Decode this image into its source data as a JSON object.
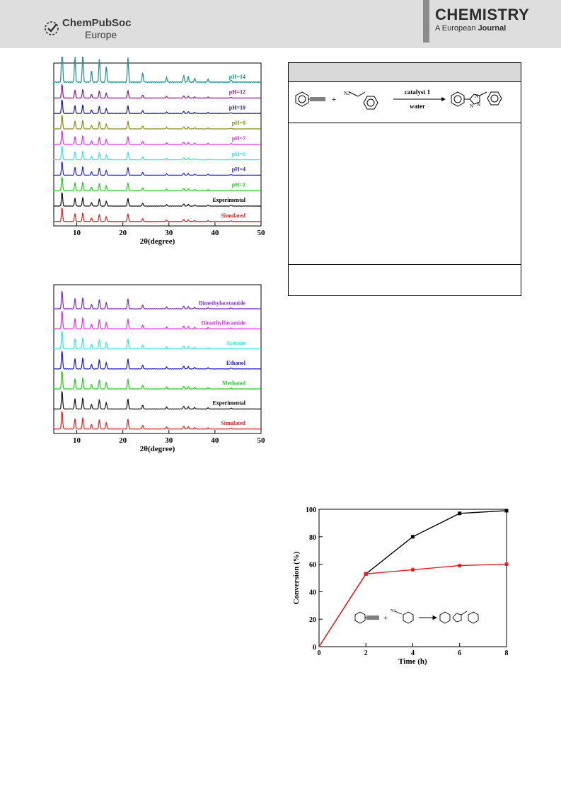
{
  "header": {
    "publisher_name": "ChemPubSoc",
    "publisher_sub": "Europe",
    "journal_title": "CHEMISTRY",
    "journal_sub_prefix": "A European",
    "journal_sub_bold": "Journal"
  },
  "scheme": {
    "reagent": "catalyst 1",
    "solvent": "water",
    "plus": "+",
    "azide_label": "N3"
  },
  "chart_data": [
    {
      "type": "line",
      "xlabel": "2θ(degree)",
      "xlim": [
        5,
        50
      ],
      "x_ticks": [
        "10",
        "20",
        "30",
        "40",
        "50"
      ],
      "series": [
        {
          "name": "pH=14",
          "color": "#1f8f8f"
        },
        {
          "name": "pH=12",
          "color": "#8b1a8b"
        },
        {
          "name": "pH=10",
          "color": "#1a1a8b"
        },
        {
          "name": "pH=8",
          "color": "#8b8b1a"
        },
        {
          "name": "pH=7",
          "color": "#e62ee6"
        },
        {
          "name": "pH=6",
          "color": "#33e6e6"
        },
        {
          "name": "pH=4",
          "color": "#2a2ac8"
        },
        {
          "name": "pH=2",
          "color": "#22cc22"
        },
        {
          "name": "Experimental",
          "color": "#111111"
        },
        {
          "name": "Simulated",
          "color": "#e62020"
        }
      ],
      "peaks_2theta": [
        6.8,
        9.6,
        11.3,
        13.2,
        14.9,
        16.4,
        21.1,
        24.3,
        29.5,
        33.2,
        34.2,
        35.6,
        38.5,
        43.5
      ]
    },
    {
      "type": "line",
      "xlabel": "2θ(degree)",
      "xlim": [
        5,
        50
      ],
      "x_ticks": [
        "10",
        "20",
        "30",
        "40",
        "50"
      ],
      "series": [
        {
          "name": "Dimethylacetamide",
          "color": "#7a2ecc"
        },
        {
          "name": "Dimethylforamide",
          "color": "#e62ee6"
        },
        {
          "name": "Acetone",
          "color": "#33e6e6"
        },
        {
          "name": "Ethanol",
          "color": "#1a1acc"
        },
        {
          "name": "Methanol",
          "color": "#22cc22"
        },
        {
          "name": "Experimental",
          "color": "#111111"
        },
        {
          "name": "Simulated",
          "color": "#e62020"
        }
      ],
      "peaks_2theta": [
        6.8,
        9.6,
        11.3,
        13.2,
        14.9,
        16.4,
        21.1,
        24.3,
        29.5,
        33.2,
        34.2,
        35.6,
        38.5,
        43.5
      ]
    },
    {
      "type": "line",
      "xlabel": "Time (h)",
      "ylabel": "Conversion (%)",
      "xlim": [
        0,
        8
      ],
      "ylim": [
        0,
        100
      ],
      "x_ticks": [
        "0",
        "2",
        "4",
        "6",
        "8"
      ],
      "y_ticks": [
        "0",
        "20",
        "40",
        "60",
        "80",
        "100"
      ],
      "series": [
        {
          "color": "#000000",
          "x": [
            0,
            2,
            4,
            6,
            8
          ],
          "y": [
            0,
            53,
            80,
            97,
            99
          ]
        },
        {
          "color": "#e62020",
          "x": [
            0,
            2,
            4,
            6,
            8
          ],
          "y": [
            0,
            53,
            56,
            59,
            60
          ]
        }
      ]
    }
  ]
}
